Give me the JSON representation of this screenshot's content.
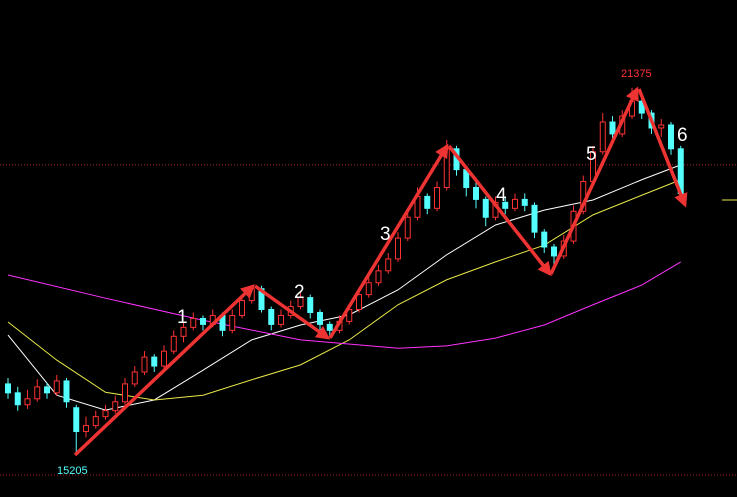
{
  "chart_data": {
    "type": "candlestick",
    "ylim": [
      14500,
      22850
    ],
    "open": [
      16400,
      16250,
      16050,
      16150,
      16350,
      16250,
      16450,
      16000,
      15600,
      15700,
      15850,
      15950,
      16100,
      16400,
      16600,
      16850,
      16700,
      16950,
      17200,
      17350,
      17500,
      17400,
      17550,
      17300,
      17550,
      17800,
      18000,
      17650,
      17400,
      17550,
      17700,
      17850,
      17600,
      17400,
      17300,
      17450,
      17650,
      17900,
      18100,
      18300,
      18500,
      18850,
      19200,
      19550,
      19350,
      19700,
      20350,
      20000,
      19700,
      19500,
      19200,
      19450,
      19350,
      19500,
      19400,
      18950,
      18700,
      18550,
      18800,
      19300,
      19800,
      20300,
      20800,
      20600,
      20900,
      21150,
      20950,
      20700,
      20750,
      20350
    ],
    "high": [
      16500,
      16350,
      16300,
      16480,
      16420,
      16550,
      16500,
      16050,
      15850,
      15950,
      16050,
      16200,
      16500,
      16700,
      16950,
      16900,
      17050,
      17300,
      17450,
      17600,
      17550,
      17650,
      17600,
      17650,
      17900,
      18060,
      18050,
      17700,
      17650,
      17800,
      17950,
      17900,
      17650,
      17450,
      17550,
      17700,
      18000,
      18200,
      18400,
      18600,
      18950,
      19300,
      19700,
      19600,
      19800,
      20500,
      20400,
      20050,
      19800,
      19550,
      19550,
      19550,
      19600,
      19600,
      19450,
      19000,
      18750,
      18900,
      19400,
      19900,
      20400,
      20950,
      20900,
      21000,
      21375,
      21200,
      21000,
      20850,
      20800,
      20400
    ],
    "low": [
      16150,
      15950,
      15980,
      16100,
      16150,
      16200,
      16000,
      15205,
      15500,
      15650,
      15800,
      15900,
      16050,
      16350,
      16550,
      16600,
      16650,
      16900,
      17100,
      17300,
      17300,
      17350,
      17200,
      17250,
      17500,
      17750,
      17600,
      17300,
      17350,
      17500,
      17650,
      17500,
      17300,
      17200,
      17250,
      17400,
      17600,
      17850,
      18050,
      18250,
      18450,
      18800,
      19150,
      19250,
      19300,
      19650,
      19900,
      19550,
      19350,
      19050,
      19150,
      19250,
      19300,
      19300,
      18850,
      18600,
      18400,
      18500,
      18750,
      19250,
      19750,
      20250,
      20500,
      20550,
      20850,
      20850,
      20600,
      20550,
      20250,
      19550
    ],
    "close": [
      16250,
      16050,
      16150,
      16350,
      16250,
      16450,
      16100,
      15600,
      15700,
      15850,
      15950,
      16100,
      16400,
      16600,
      16850,
      16700,
      16950,
      17200,
      17350,
      17500,
      17400,
      17550,
      17300,
      17550,
      17800,
      18000,
      17650,
      17400,
      17550,
      17700,
      17850,
      17600,
      17400,
      17300,
      17450,
      17650,
      17900,
      18100,
      18300,
      18500,
      18850,
      19200,
      19550,
      19350,
      19700,
      20350,
      20000,
      19700,
      19500,
      19200,
      19450,
      19350,
      19500,
      19400,
      18950,
      18700,
      18550,
      18800,
      19300,
      19800,
      20300,
      20800,
      20600,
      20900,
      21150,
      20950,
      20700,
      20750,
      20350,
      19600
    ],
    "up_color": "#ff3232",
    "down_color": "#54ffff",
    "moving_averages": [
      {
        "color": "#ffffff",
        "x": [
          0,
          5,
          10,
          15,
          20,
          25,
          30,
          35,
          40,
          45,
          50,
          55,
          60,
          65,
          69
        ],
        "values": [
          17220,
          16210,
          15960,
          16130,
          16630,
          17140,
          17390,
          17560,
          17980,
          18570,
          19070,
          19320,
          19490,
          19830,
          20080
        ]
      },
      {
        "color": "#e8e84a",
        "x": [
          0,
          5,
          10,
          15,
          20,
          25,
          30,
          35,
          40,
          45,
          50,
          55,
          60,
          65,
          69
        ],
        "values": [
          17440,
          16800,
          16260,
          16130,
          16210,
          16470,
          16720,
          17140,
          17730,
          18150,
          18450,
          18730,
          19240,
          19570,
          19830
        ]
      },
      {
        "color": "#ff33ff",
        "x": [
          0,
          10,
          20,
          30,
          40,
          45,
          50,
          55,
          60,
          65,
          69
        ],
        "values": [
          18230,
          17840,
          17470,
          17140,
          17000,
          17040,
          17170,
          17390,
          17730,
          18060,
          18450
        ]
      }
    ],
    "reference_lines": [
      20080,
      14870
    ],
    "annotations": {
      "low": "15205",
      "high": "21375",
      "waves": [
        "1",
        "2",
        "3",
        "4",
        "5",
        "6"
      ]
    }
  }
}
